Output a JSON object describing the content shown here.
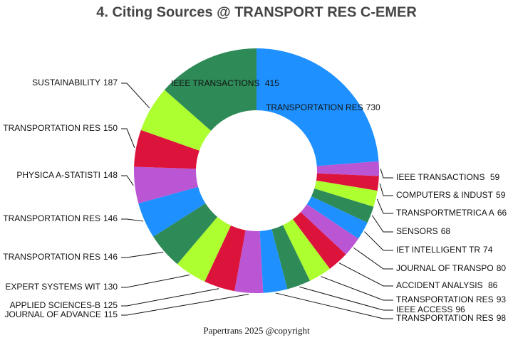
{
  "chart_data": {
    "type": "donut",
    "title": "4. Citing Sources @ TRANSPORT RES C-EMER",
    "footer": "Papertrans 2025 @copyright",
    "categories": [
      "TRANSPORTATION RES",
      "IEEE TRANSACTIONS ",
      "COMPUTERS & INDUST",
      "TRANSPORTMETRICA A",
      "SENSORS",
      "IET INTELLIGENT TR",
      "JOURNAL OF TRANSPO",
      "ACCIDENT ANALYSIS ",
      "TRANSPORTATION RES",
      "IEEE ACCESS",
      "TRANSPORTATION RES",
      "JOURNAL OF ADVANCE",
      "APPLIED SCIENCES-B",
      "EXPERT SYSTEMS WIT",
      "TRANSPORTATION RES",
      "TRANSPORTATION RES",
      "PHYSICA A-STATISTI",
      "TRANSPORTATION RES",
      "SUSTAINABILITY",
      "IEEE TRANSACTIONS "
    ],
    "values": [
      730,
      59,
      59,
      66,
      68,
      74,
      80,
      86,
      93,
      96,
      98,
      115,
      125,
      130,
      146,
      146,
      148,
      150,
      187,
      415
    ],
    "colors": [
      "#1e90ff",
      "#ba55d3",
      "#dc143c",
      "#adff2f",
      "#2e8b57"
    ]
  }
}
